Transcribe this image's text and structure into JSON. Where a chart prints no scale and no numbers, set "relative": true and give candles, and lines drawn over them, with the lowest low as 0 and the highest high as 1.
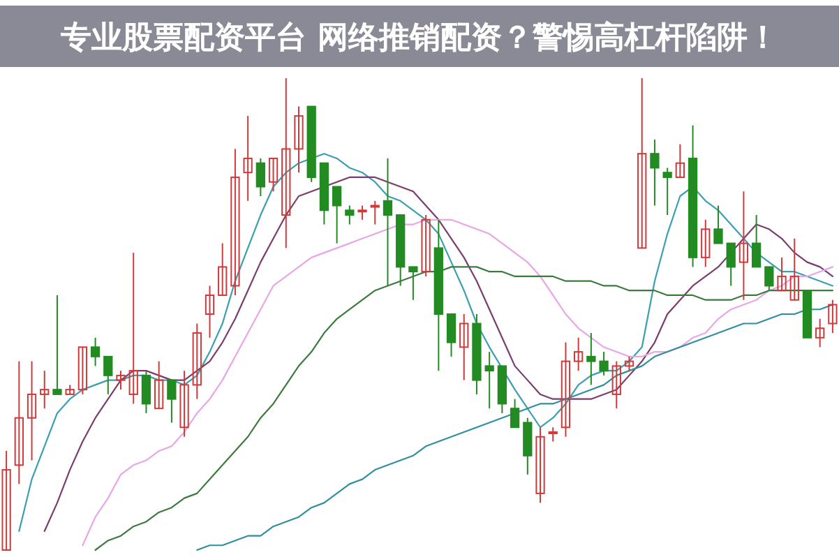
{
  "chart_data": {
    "type": "candlestick",
    "title": "专业股票配资平台 网络推销配资？警惕高杠杆陷阱！",
    "relative": true,
    "categories": [
      null,
      null,
      null,
      null,
      null,
      null,
      null,
      null,
      null,
      null,
      null,
      null,
      null,
      null,
      null,
      null,
      null,
      null,
      null,
      null,
      null,
      null,
      null,
      null,
      null,
      null,
      null,
      null,
      null,
      null,
      null,
      null,
      null,
      null,
      null,
      null,
      null,
      null,
      null,
      null,
      null,
      null,
      null,
      null,
      null,
      null,
      null,
      null,
      null,
      null,
      null,
      null,
      null,
      null,
      null,
      null,
      null,
      null,
      null,
      null,
      null,
      null,
      null,
      null,
      null,
      null
    ],
    "ohlc": [
      [
        0,
        0.21,
        0,
        0.17
      ],
      [
        0.18,
        0.4,
        0.14,
        0.28
      ],
      [
        0.28,
        0.4,
        0.19,
        0.33
      ],
      [
        0.33,
        0.38,
        0.3,
        0.34
      ],
      [
        0.34,
        0.54,
        0.33,
        0.33
      ],
      [
        0.33,
        0.35,
        0.33,
        0.34
      ],
      [
        0.34,
        0.43,
        0.33,
        0.43
      ],
      [
        0.43,
        0.45,
        0.39,
        0.41
      ],
      [
        0.41,
        0.41,
        0.33,
        0.37
      ],
      [
        0.36,
        0.38,
        0.34,
        0.37
      ],
      [
        0.33,
        0.63,
        0.31,
        0.38
      ],
      [
        0.37,
        0.38,
        0.29,
        0.31
      ],
      [
        0.3,
        0.4,
        0.3,
        0.36
      ],
      [
        0.36,
        0.36,
        0.27,
        0.32
      ],
      [
        0.26,
        0.38,
        0.24,
        0.35
      ],
      [
        0.35,
        0.48,
        0.32,
        0.46
      ],
      [
        0.5,
        0.56,
        0.45,
        0.54
      ],
      [
        0.54,
        0.65,
        0.54,
        0.6
      ],
      [
        0.56,
        0.85,
        0.54,
        0.79
      ],
      [
        0.8,
        0.92,
        0.74,
        0.83
      ],
      [
        0.82,
        0.83,
        0.75,
        0.77
      ],
      [
        0.78,
        0.83,
        0.76,
        0.83
      ],
      [
        0.71,
        1,
        0.64,
        0.85
      ],
      [
        0.85,
        0.94,
        0.8,
        0.92
      ],
      [
        0.94,
        0.94,
        0.78,
        0.79
      ],
      [
        0.82,
        0.82,
        0.69,
        0.72
      ],
      [
        0.77,
        0.77,
        0.65,
        0.73
      ],
      [
        0.72,
        0.73,
        0.69,
        0.71
      ],
      [
        0.72,
        0.73,
        0.7,
        0.72
      ],
      [
        0.73,
        0.74,
        0.69,
        0.73
      ],
      [
        0.74,
        0.83,
        0.56,
        0.71
      ],
      [
        0.71,
        0.71,
        0.56,
        0.6
      ],
      [
        0.6,
        0.6,
        0.53,
        0.59
      ],
      [
        0.59,
        0.71,
        0.58,
        0.7
      ],
      [
        0.64,
        0.7,
        0.38,
        0.5
      ],
      [
        0.5,
        0.5,
        0.41,
        0.44
      ],
      [
        0.43,
        0.5,
        0.36,
        0.48
      ],
      [
        0.48,
        0.5,
        0.33,
        0.36
      ],
      [
        0.39,
        0.42,
        0.3,
        0.38
      ],
      [
        0.39,
        0.39,
        0.29,
        0.31
      ],
      [
        0.3,
        0.32,
        0.26,
        0.26
      ],
      [
        0.27,
        0.28,
        0.16,
        0.2
      ],
      [
        0.12,
        0.26,
        0.1,
        0.24
      ],
      [
        0.25,
        0.26,
        0.23,
        0.25
      ],
      [
        0.26,
        0.44,
        0.24,
        0.4
      ],
      [
        0.4,
        0.45,
        0.38,
        0.42
      ],
      [
        0.41,
        0.46,
        0.35,
        0.4
      ],
      [
        0.4,
        0.42,
        0.37,
        0.38
      ],
      [
        0.33,
        0.4,
        0.3,
        0.39
      ],
      [
        0.39,
        0.41,
        0.38,
        0.4
      ],
      [
        0.64,
        1,
        0.64,
        0.84
      ],
      [
        0.84,
        0.87,
        0.73,
        0.81
      ],
      [
        0.8,
        0.81,
        0.71,
        0.79
      ],
      [
        0.79,
        0.86,
        0.79,
        0.82
      ],
      [
        0.83,
        0.9,
        0.6,
        0.62
      ],
      [
        0.62,
        0.7,
        0.6,
        0.68
      ],
      [
        0.68,
        0.73,
        0.65,
        0.65
      ],
      [
        0.65,
        0.65,
        0.56,
        0.6
      ],
      [
        0.61,
        0.76,
        0.53,
        0.65
      ],
      [
        0.65,
        0.71,
        0.6,
        0.6
      ],
      [
        0.6,
        0.6,
        0.55,
        0.56
      ],
      [
        0.55,
        0.62,
        0.55,
        0.58
      ],
      [
        0.53,
        0.66,
        0.53,
        0.58
      ],
      [
        0.55,
        0.55,
        0.45,
        0.45
      ],
      [
        0.45,
        0.49,
        0.43,
        0.47
      ],
      [
        0.48,
        0.53,
        0.46,
        0.52
      ]
    ],
    "series": [
      {
        "type": "line",
        "color": "#3a9fb0",
        "values": [
          null,
          0.04,
          0.15,
          0.22,
          0.29,
          0.32,
          0.34,
          0.35,
          0.36,
          0.36,
          0.37,
          0.37,
          0.36,
          0.36,
          0.35,
          0.37,
          0.42,
          0.48,
          0.57,
          0.64,
          0.71,
          0.77,
          0.8,
          0.82,
          0.83,
          0.84,
          0.83,
          0.81,
          0.8,
          0.78,
          0.75,
          0.74,
          0.72,
          0.7,
          0.67,
          0.61,
          0.55,
          0.48,
          0.43,
          null,
          0.34,
          0.3,
          0.26,
          0.28,
          0.31,
          0.35,
          0.37,
          0.38,
          0.38,
          0.4,
          0.43,
          0.57,
          0.67,
          0.75,
          0.77,
          0.74,
          0.72,
          0.69,
          0.66,
          0.63,
          0.61,
          0.59,
          0.59,
          0.58,
          0.57,
          0.56
        ]
      },
      {
        "type": "line",
        "color": "#7a3d6e",
        "values": [
          null,
          null,
          null,
          0.04,
          0.1,
          0.17,
          0.23,
          0.28,
          0.32,
          0.36,
          0.38,
          0.38,
          0.37,
          0.36,
          0.36,
          0.38,
          0.4,
          0.44,
          0.49,
          0.55,
          0.61,
          0.66,
          0.71,
          0.75,
          0.76,
          0.77,
          0.78,
          0.79,
          0.79,
          0.79,
          0.78,
          0.77,
          0.76,
          0.73,
          0.7,
          0.66,
          0.62,
          0.57,
          0.51,
          0.45,
          0.39,
          0.36,
          0.33,
          0.32,
          0.32,
          0.32,
          0.32,
          0.33,
          0.34,
          0.37,
          0.4,
          0.44,
          0.5,
          0.53,
          0.56,
          0.58,
          0.6,
          0.63,
          0.66,
          0.69,
          0.68,
          0.66,
          0.63,
          0.61,
          0.6,
          0.58
        ]
      },
      {
        "type": "line",
        "color": "#e8a6e8",
        "values": [
          null,
          null,
          null,
          null,
          null,
          null,
          0.01,
          0.07,
          0.11,
          0.16,
          0.18,
          0.19,
          0.21,
          0.22,
          0.25,
          0.29,
          0.32,
          0.36,
          0.41,
          0.46,
          0.51,
          0.56,
          0.58,
          0.6,
          0.62,
          0.63,
          0.64,
          0.65,
          0.66,
          0.67,
          0.68,
          0.69,
          0.69,
          0.7,
          0.7,
          0.7,
          0.69,
          0.68,
          0.67,
          0.65,
          0.63,
          0.61,
          0.58,
          0.54,
          0.5,
          0.47,
          0.45,
          0.43,
          0.42,
          0.41,
          0.41,
          0.42,
          0.42,
          0.43,
          0.45,
          0.46,
          0.49,
          0.51,
          0.52,
          0.53,
          0.55,
          0.56,
          0.58,
          0.58,
          0.59,
          0.6
        ]
      },
      {
        "type": "line",
        "color": "#3d7a3d",
        "values": [
          null,
          null,
          null,
          null,
          null,
          null,
          null,
          0.0,
          0.02,
          0.03,
          0.05,
          0.06,
          0.08,
          0.09,
          0.11,
          0.12,
          0.15,
          0.18,
          0.21,
          0.24,
          0.28,
          0.31,
          0.35,
          0.39,
          0.42,
          0.46,
          0.49,
          0.51,
          0.53,
          0.55,
          0.56,
          0.57,
          0.58,
          0.59,
          0.59,
          0.6,
          0.6,
          0.6,
          0.59,
          0.59,
          0.58,
          0.58,
          0.58,
          0.58,
          0.57,
          0.57,
          0.57,
          0.56,
          0.56,
          0.55,
          0.55,
          0.55,
          0.54,
          0.54,
          0.54,
          0.53,
          0.53,
          0.53,
          0.54,
          0.54,
          0.55,
          0.55,
          0.55,
          0.55,
          0.55,
          0.55
        ]
      },
      {
        "type": "line",
        "color": "#2f8fa0",
        "values": [
          null,
          null,
          null,
          null,
          null,
          null,
          null,
          null,
          null,
          null,
          null,
          null,
          null,
          null,
          null,
          0.0,
          0.01,
          0.01,
          0.02,
          0.03,
          0.03,
          0.05,
          0.06,
          0.07,
          0.09,
          0.1,
          0.12,
          0.14,
          0.15,
          0.17,
          0.18,
          0.19,
          0.2,
          0.22,
          0.23,
          0.24,
          0.25,
          0.26,
          0.27,
          0.28,
          0.29,
          0.3,
          0.31,
          0.31,
          0.32,
          0.33,
          0.34,
          0.35,
          0.37,
          0.38,
          0.39,
          0.41,
          0.42,
          0.43,
          0.44,
          0.45,
          0.46,
          0.47,
          0.48,
          0.48,
          0.49,
          0.5,
          0.5,
          0.51,
          0.51,
          0.52
        ]
      }
    ],
    "colors": [
      "#d03a3a",
      "#d03a3a",
      "#d03a3a",
      "#d03a3a",
      "#228b22",
      "#d03a3a",
      "#d03a3a",
      "#228b22",
      "#228b22",
      "#d03a3a",
      "#d03a3a",
      "#228b22",
      "#d03a3a",
      "#228b22",
      "#d03a3a",
      "#d03a3a",
      "#d03a3a",
      "#d03a3a",
      "#d03a3a",
      "#d03a3a",
      "#228b22",
      "#d03a3a",
      "#d03a3a",
      "#d03a3a",
      "#228b22",
      "#228b22",
      "#228b22",
      "#228b22",
      "#d03a3a",
      "#d03a3a",
      "#228b22",
      "#228b22",
      "#228b22",
      "#d03a3a",
      "#228b22",
      "#228b22",
      "#d03a3a",
      "#228b22",
      "#228b22",
      "#228b22",
      "#228b22",
      "#228b22",
      "#d03a3a",
      "#d03a3a",
      "#d03a3a",
      "#d03a3a",
      "#228b22",
      "#228b22",
      "#d03a3a",
      "#d03a3a",
      "#d03a3a",
      "#228b22",
      "#228b22",
      "#d03a3a",
      "#228b22",
      "#d03a3a",
      "#228b22",
      "#228b22",
      "#d03a3a",
      "#228b22",
      "#228b22",
      "#d03a3a",
      "#d03a3a",
      "#228b22",
      "#d03a3a",
      "#d03a3a"
    ]
  }
}
